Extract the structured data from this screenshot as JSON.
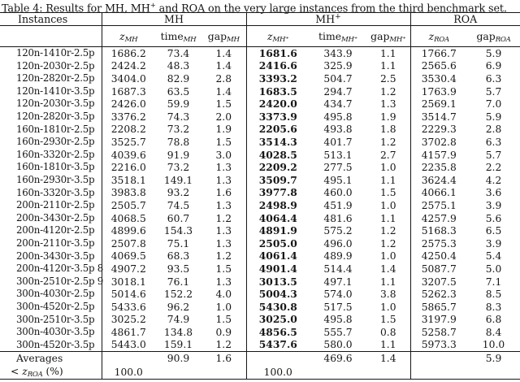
{
  "title": {
    "prefix": "Table 4:  Results for MH, MH",
    "sup": "+",
    "suffix": " and ROA on the very large instances from the third benchmark set."
  },
  "table": {
    "groups": {
      "instances": "Instances",
      "mh": "MH",
      "mhp_base": "MH",
      "mhp_sup": "+",
      "roa": "ROA"
    },
    "cols": {
      "z_mh": {
        "base": "z",
        "sub": "MH"
      },
      "time_mh": {
        "base": "time",
        "sub": "MH"
      },
      "gap_mh": {
        "base": "gap",
        "sub": "MH"
      },
      "z_mhp": {
        "base": "z",
        "sub": "MH⁺"
      },
      "time_mhp": {
        "base": "time",
        "sub": "MH⁺"
      },
      "gap_mhp": {
        "base": "gap",
        "sub": "MH⁺"
      },
      "z_roa": {
        "base": "z",
        "sub": "ROA"
      },
      "gap_roa": {
        "base": "gap",
        "sub": "ROA"
      }
    },
    "rows": [
      {
        "instance": "120n-1410r-2.5p",
        "z_mh": "1686.2",
        "time_mh": "73.4",
        "gap_mh": "1.4",
        "z_mhp": "1681.6",
        "time_mhp": "343.9",
        "gap_mhp": "1.1",
        "z_roa": "1766.7",
        "gap_roa": "5.9"
      },
      {
        "instance": "120n-2030r-2.5p",
        "z_mh": "2424.2",
        "time_mh": "48.3",
        "gap_mh": "1.4",
        "z_mhp": "2416.6",
        "time_mhp": "325.9",
        "gap_mhp": "1.1",
        "z_roa": "2565.6",
        "gap_roa": "6.9"
      },
      {
        "instance": "120n-2820r-2.5p",
        "z_mh": "3404.0",
        "time_mh": "82.9",
        "gap_mh": "2.8",
        "z_mhp": "3393.2",
        "time_mhp": "504.7",
        "gap_mhp": "2.5",
        "z_roa": "3530.4",
        "gap_roa": "6.3"
      },
      {
        "instance": "120n-1410r-3.5p",
        "z_mh": "1687.3",
        "time_mh": "63.5",
        "gap_mh": "1.4",
        "z_mhp": "1683.5",
        "time_mhp": "294.7",
        "gap_mhp": "1.2",
        "z_roa": "1763.9",
        "gap_roa": "5.7"
      },
      {
        "instance": "120n-2030r-3.5p",
        "z_mh": "2426.0",
        "time_mh": "59.9",
        "gap_mh": "1.5",
        "z_mhp": "2420.0",
        "time_mhp": "434.7",
        "gap_mhp": "1.3",
        "z_roa": "2569.1",
        "gap_roa": "7.0"
      },
      {
        "instance": "120n-2820r-3.5p",
        "z_mh": "3376.2",
        "time_mh": "74.3",
        "gap_mh": "2.0",
        "z_mhp": "3373.9",
        "time_mhp": "495.8",
        "gap_mhp": "1.9",
        "z_roa": "3514.7",
        "gap_roa": "5.9"
      },
      {
        "instance": "160n-1810r-2.5p",
        "z_mh": "2208.2",
        "time_mh": "73.2",
        "gap_mh": "1.9",
        "z_mhp": "2205.6",
        "time_mhp": "493.8",
        "gap_mhp": "1.8",
        "z_roa": "2229.3",
        "gap_roa": "2.8"
      },
      {
        "instance": "160n-2930r-2.5p",
        "z_mh": "3525.7",
        "time_mh": "78.8",
        "gap_mh": "1.5",
        "z_mhp": "3514.3",
        "time_mhp": "401.7",
        "gap_mhp": "1.2",
        "z_roa": "3702.8",
        "gap_roa": "6.3"
      },
      {
        "instance": "160n-3320r-2.5p",
        "z_mh": "4039.6",
        "time_mh": "91.9",
        "gap_mh": "3.0",
        "z_mhp": "4028.5",
        "time_mhp": "513.1",
        "gap_mhp": "2.7",
        "z_roa": "4157.9",
        "gap_roa": "5.7"
      },
      {
        "instance": "160n-1810r-3.5p",
        "z_mh": "2216.0",
        "time_mh": "73.2",
        "gap_mh": "1.3",
        "z_mhp": "2209.2",
        "time_mhp": "277.5",
        "gap_mhp": "1.0",
        "z_roa": "2235.8",
        "gap_roa": "2.2"
      },
      {
        "instance": "160n-2930r-3.5p",
        "z_mh": "3518.1",
        "time_mh": "149.1",
        "gap_mh": "1.3",
        "z_mhp": "3509.7",
        "time_mhp": "495.1",
        "gap_mhp": "1.1",
        "z_roa": "3624.4",
        "gap_roa": "4.2"
      },
      {
        "instance": "160n-3320r-3.5p",
        "z_mh": "3983.8",
        "time_mh": "93.2",
        "gap_mh": "1.6",
        "z_mhp": "3977.8",
        "time_mhp": "460.0",
        "gap_mhp": "1.5",
        "z_roa": "4066.1",
        "gap_roa": "3.6"
      },
      {
        "instance": "200n-2110r-2.5p",
        "z_mh": "2505.7",
        "time_mh": "74.5",
        "gap_mh": "1.3",
        "z_mhp": "2498.9",
        "time_mhp": "451.9",
        "gap_mhp": "1.0",
        "z_roa": "2575.1",
        "gap_roa": "3.9"
      },
      {
        "instance": "200n-3430r-2.5p",
        "z_mh": "4068.5",
        "time_mh": "60.7",
        "gap_mh": "1.2",
        "z_mhp": "4064.4",
        "time_mhp": "481.6",
        "gap_mhp": "1.1",
        "z_roa": "4257.9",
        "gap_roa": "5.6"
      },
      {
        "instance": "200n-4120r-2.5p",
        "z_mh": "4899.6",
        "time_mh": "154.3",
        "gap_mh": "1.3",
        "z_mhp": "4891.9",
        "time_mhp": "575.2",
        "gap_mhp": "1.2",
        "z_roa": "5168.3",
        "gap_roa": "6.5"
      },
      {
        "instance": "200n-2110r-3.5p",
        "z_mh": "2507.8",
        "time_mh": "75.1",
        "gap_mh": "1.3",
        "z_mhp": "2505.0",
        "time_mhp": "496.0",
        "gap_mhp": "1.2",
        "z_roa": "2575.3",
        "gap_roa": "3.9"
      },
      {
        "instance": "200n-3430r-3.5p",
        "z_mh": "4069.5",
        "time_mh": "68.3",
        "gap_mh": "1.2",
        "z_mhp": "4061.4",
        "time_mhp": "489.9",
        "gap_mhp": "1.0",
        "z_roa": "4250.4",
        "gap_roa": "5.4"
      },
      {
        "instance": "200n-4120r-3.5p 8",
        "z_mh": "4907.2",
        "time_mh": "93.5",
        "gap_mh": "1.5",
        "z_mhp": "4901.4",
        "time_mhp": "514.4",
        "gap_mhp": "1.4",
        "z_roa": "5087.7",
        "gap_roa": "5.0"
      },
      {
        "instance": "300n-2510r-2.5p 9",
        "z_mh": "3018.1",
        "time_mh": "76.1",
        "gap_mh": "1.3",
        "z_mhp": "3013.5",
        "time_mhp": "497.1",
        "gap_mhp": "1.1",
        "z_roa": "3207.5",
        "gap_roa": "7.1"
      },
      {
        "instance": "300n-4030r-2.5p",
        "z_mh": "5014.6",
        "time_mh": "152.2",
        "gap_mh": "4.0",
        "z_mhp": "5004.3",
        "time_mhp": "574.0",
        "gap_mhp": "3.8",
        "z_roa": "5262.3",
        "gap_roa": "8.5"
      },
      {
        "instance": "300n-4520r-2.5p",
        "z_mh": "5433.6",
        "time_mh": "96.2",
        "gap_mh": "1.0",
        "z_mhp": "5430.8",
        "time_mhp": "517.5",
        "gap_mhp": "1.0",
        "z_roa": "5865.7",
        "gap_roa": "8.3"
      },
      {
        "instance": "300n-2510r-3.5p",
        "z_mh": "3025.2",
        "time_mh": "74.9",
        "gap_mh": "1.5",
        "z_mhp": "3025.0",
        "time_mhp": "495.8",
        "gap_mhp": "1.5",
        "z_roa": "3197.9",
        "gap_roa": "6.8"
      },
      {
        "instance": "300n-4030r-3.5p",
        "z_mh": "4861.7",
        "time_mh": "134.8",
        "gap_mh": "0.9",
        "z_mhp": "4856.5",
        "time_mhp": "555.7",
        "gap_mhp": "0.8",
        "z_roa": "5258.7",
        "gap_roa": "8.4"
      },
      {
        "instance": "300n-4520r-3.5p",
        "z_mh": "5443.0",
        "time_mh": "159.1",
        "gap_mh": "1.2",
        "z_mhp": "5437.6",
        "time_mhp": "580.0",
        "gap_mhp": "1.1",
        "z_roa": "5973.3",
        "gap_roa": "10.0"
      }
    ],
    "averages": {
      "label": "Averages",
      "time_mh": "90.9",
      "gap_mh": "1.6",
      "time_mhp": "469.6",
      "gap_mhp": "1.4",
      "gap_roa": "5.9"
    },
    "lt_row": {
      "lt": "< ",
      "z": "z",
      "sub": "ROA",
      "pct": " (%)",
      "z_mh": "100.0",
      "z_mhp": "100.0"
    }
  }
}
